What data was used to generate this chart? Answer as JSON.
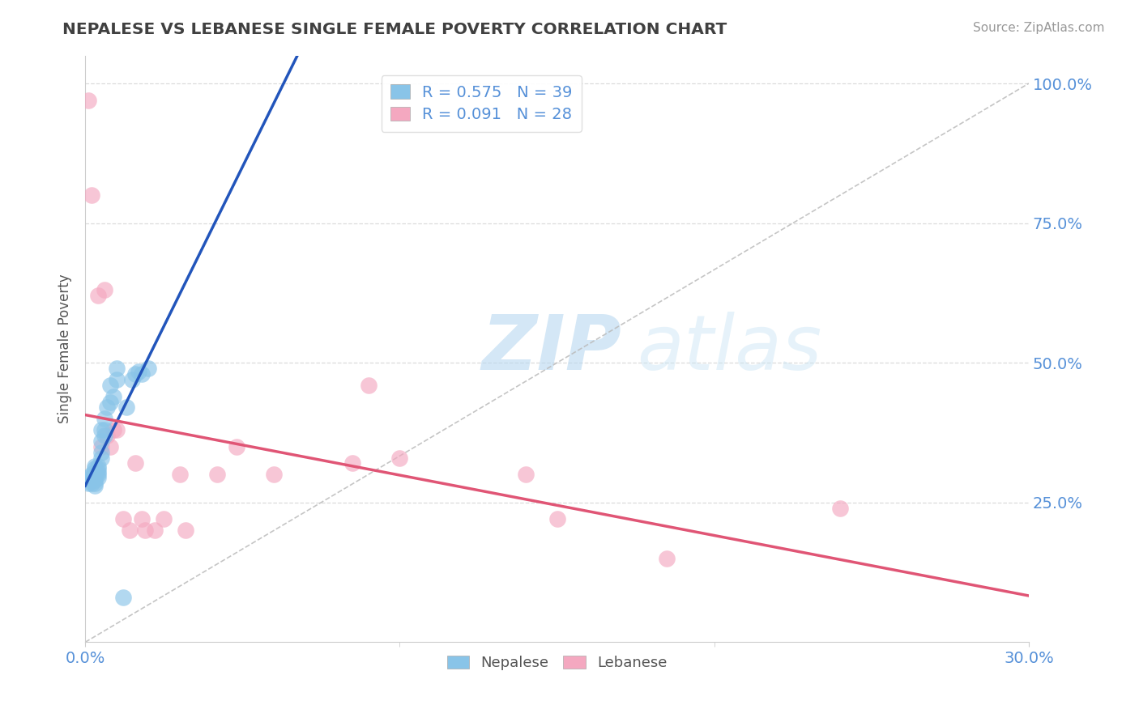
{
  "title": "NEPALESE VS LEBANESE SINGLE FEMALE POVERTY CORRELATION CHART",
  "ylabel": "Single Female Poverty",
  "source_text": "Source: ZipAtlas.com",
  "xlim": [
    0.0,
    0.3
  ],
  "ylim": [
    0.0,
    1.05
  ],
  "ytick_values": [
    0.25,
    0.5,
    0.75,
    1.0
  ],
  "ytick_labels": [
    "25.0%",
    "50.0%",
    "75.0%",
    "100.0%"
  ],
  "xtick_values": [
    0.0,
    0.3
  ],
  "xtick_labels": [
    "0.0%",
    "30.0%"
  ],
  "nepalese_color": "#89C4E8",
  "lebanese_color": "#F4A8C0",
  "nepalese_line_color": "#2255BB",
  "lebanese_line_color": "#E05575",
  "R_nepalese": 0.575,
  "N_nepalese": 39,
  "R_lebanese": 0.091,
  "N_lebanese": 28,
  "nepalese_x": [
    0.001,
    0.001,
    0.002,
    0.002,
    0.002,
    0.002,
    0.003,
    0.003,
    0.003,
    0.003,
    0.003,
    0.003,
    0.003,
    0.003,
    0.004,
    0.004,
    0.004,
    0.004,
    0.004,
    0.005,
    0.005,
    0.005,
    0.005,
    0.006,
    0.006,
    0.006,
    0.007,
    0.008,
    0.008,
    0.009,
    0.01,
    0.01,
    0.012,
    0.013,
    0.015,
    0.016,
    0.017,
    0.018,
    0.02
  ],
  "nepalese_y": [
    0.285,
    0.295,
    0.285,
    0.29,
    0.295,
    0.3,
    0.28,
    0.285,
    0.29,
    0.295,
    0.3,
    0.305,
    0.31,
    0.315,
    0.295,
    0.3,
    0.305,
    0.31,
    0.315,
    0.33,
    0.34,
    0.36,
    0.38,
    0.37,
    0.38,
    0.4,
    0.42,
    0.43,
    0.46,
    0.44,
    0.47,
    0.49,
    0.08,
    0.42,
    0.47,
    0.48,
    0.485,
    0.48,
    0.49
  ],
  "lebanese_x": [
    0.001,
    0.002,
    0.004,
    0.005,
    0.006,
    0.007,
    0.008,
    0.009,
    0.01,
    0.012,
    0.014,
    0.016,
    0.018,
    0.019,
    0.022,
    0.025,
    0.03,
    0.032,
    0.042,
    0.048,
    0.06,
    0.085,
    0.09,
    0.1,
    0.14,
    0.15,
    0.185,
    0.24
  ],
  "lebanese_y": [
    0.97,
    0.8,
    0.62,
    0.35,
    0.63,
    0.37,
    0.35,
    0.38,
    0.38,
    0.22,
    0.2,
    0.32,
    0.22,
    0.2,
    0.2,
    0.22,
    0.3,
    0.2,
    0.3,
    0.35,
    0.3,
    0.32,
    0.46,
    0.33,
    0.3,
    0.22,
    0.15,
    0.24
  ],
  "watermark_zip": "ZIP",
  "watermark_atlas": "atlas",
  "legend_label_nepalese": "Nepalese",
  "legend_label_lebanese": "Lebanese",
  "background_color": "#FFFFFF",
  "grid_color": "#CCCCCC",
  "title_color": "#404040",
  "axis_label_color": "#555555",
  "tick_label_color": "#5590D8",
  "source_color": "#999999",
  "ref_line_color": "#BBBBBB"
}
